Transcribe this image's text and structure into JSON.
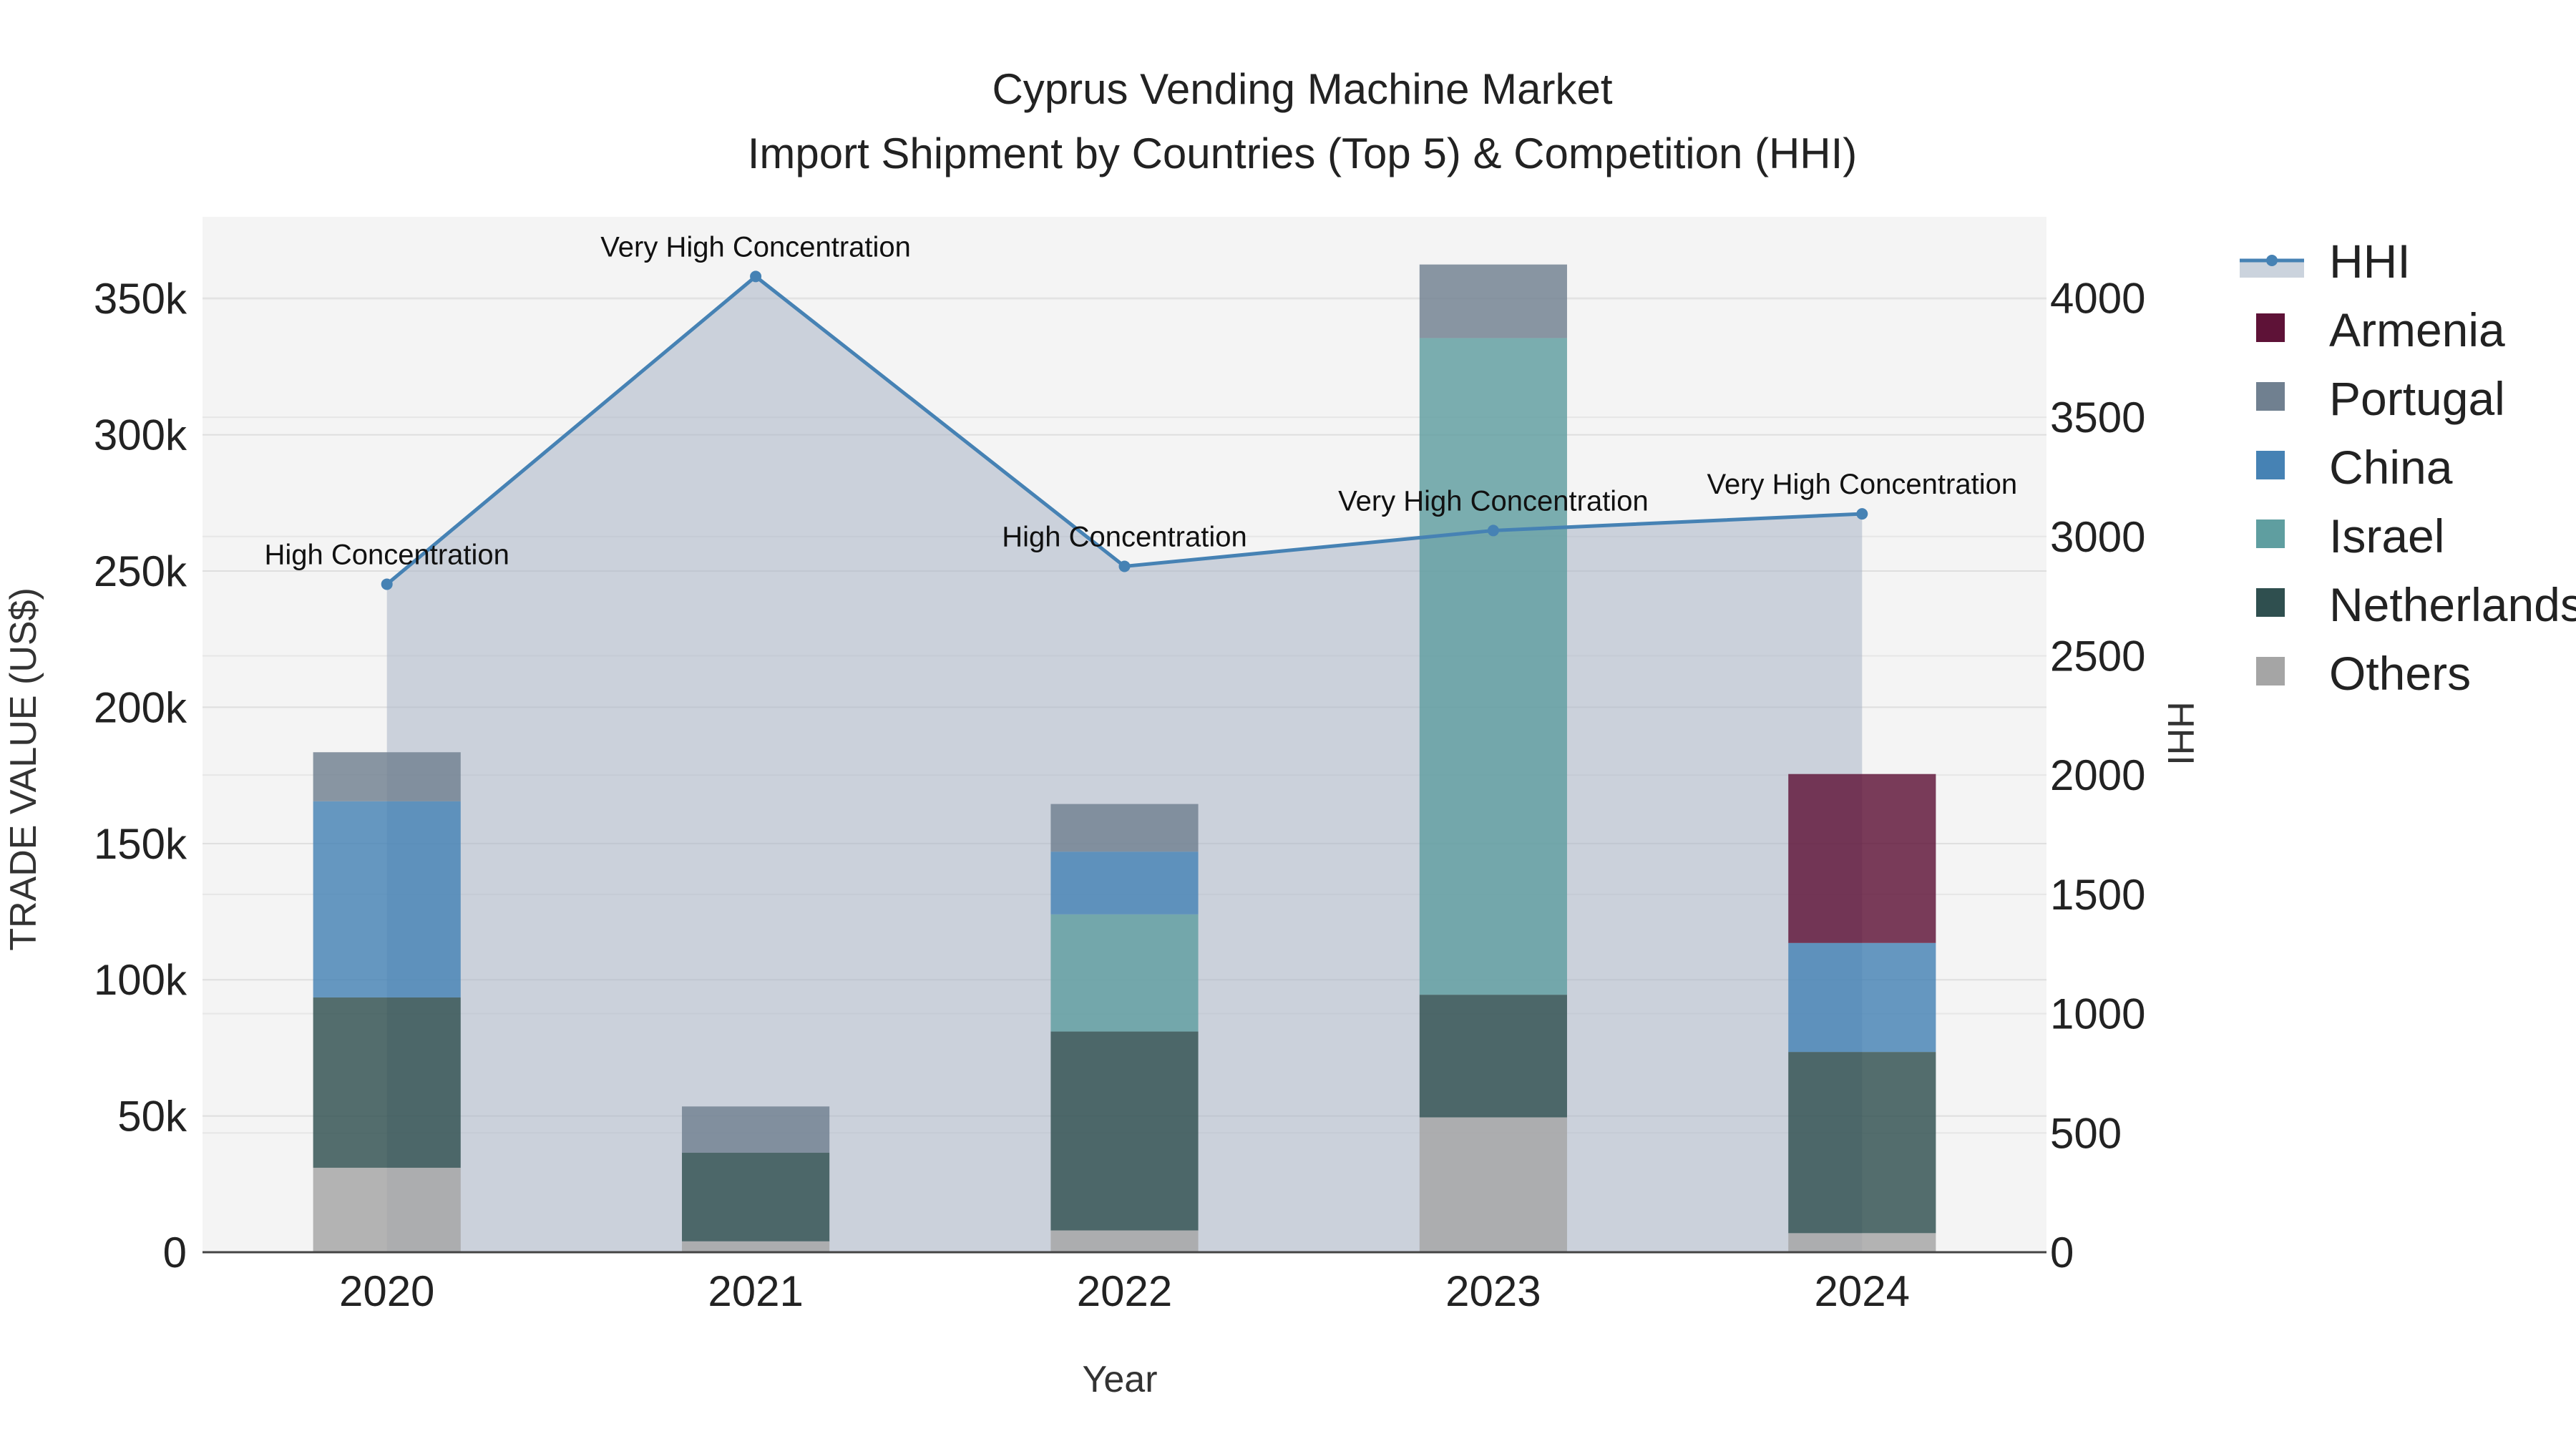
{
  "chart_data": {
    "type": "bar",
    "title": "Cyprus Vending Machine Market",
    "subtitle": "Import Shipment by Countries (Top 5) & Competition (HHI)",
    "xlabel": "Year",
    "ylabel": "TRADE VALUE (US$)",
    "y2label": "HHI",
    "categories": [
      "2020",
      "2021",
      "2022",
      "2023",
      "2024"
    ],
    "ylim": [
      0,
      380000
    ],
    "y2lim": [
      0,
      4340
    ],
    "yticks": [
      0,
      50000,
      100000,
      150000,
      200000,
      250000,
      300000,
      350000
    ],
    "ytick_labels": [
      "0",
      "50k",
      "100k",
      "150k",
      "200k",
      "250k",
      "300k",
      "350k"
    ],
    "y2ticks": [
      0,
      500,
      1000,
      1500,
      2000,
      2500,
      3000,
      3500,
      4000
    ],
    "y2tick_labels": [
      "0",
      "500",
      "1000",
      "1500",
      "2000",
      "2500",
      "3000",
      "3500",
      "4000"
    ],
    "stack_order": [
      "Others",
      "Netherlands",
      "Israel",
      "China",
      "Portugal",
      "Armenia"
    ],
    "series": [
      {
        "name": "Others",
        "color": "#a5a5a5",
        "values": [
          31000,
          4000,
          8000,
          49500,
          7000
        ]
      },
      {
        "name": "Netherlands",
        "color": "#2f4f4f",
        "values": [
          62500,
          32500,
          73000,
          45000,
          66500
        ]
      },
      {
        "name": "Israel",
        "color": "#5f9ea0",
        "values": [
          0,
          0,
          43000,
          241000,
          0
        ]
      },
      {
        "name": "China",
        "color": "#4682b4",
        "values": [
          72000,
          0,
          23000,
          0,
          40000
        ]
      },
      {
        "name": "Portugal",
        "color": "#708090",
        "values": [
          18000,
          17000,
          17500,
          27000,
          0
        ]
      },
      {
        "name": "Armenia",
        "color": "#5e1237",
        "values": [
          0,
          0,
          0,
          0,
          62000
        ]
      }
    ],
    "hhi": {
      "name": "HHI",
      "color": "#4682b4",
      "values": [
        2800,
        4090,
        2875,
        3025,
        3095
      ],
      "labels": [
        "High Concentration",
        "Very High Concentration",
        "High Concentration",
        "Very High Concentration",
        "Very High Concentration"
      ]
    },
    "legend": {
      "position": "right",
      "items": [
        "HHI",
        "Armenia",
        "Portugal",
        "China",
        "Israel",
        "Netherlands",
        "Others"
      ]
    },
    "grid": true
  }
}
